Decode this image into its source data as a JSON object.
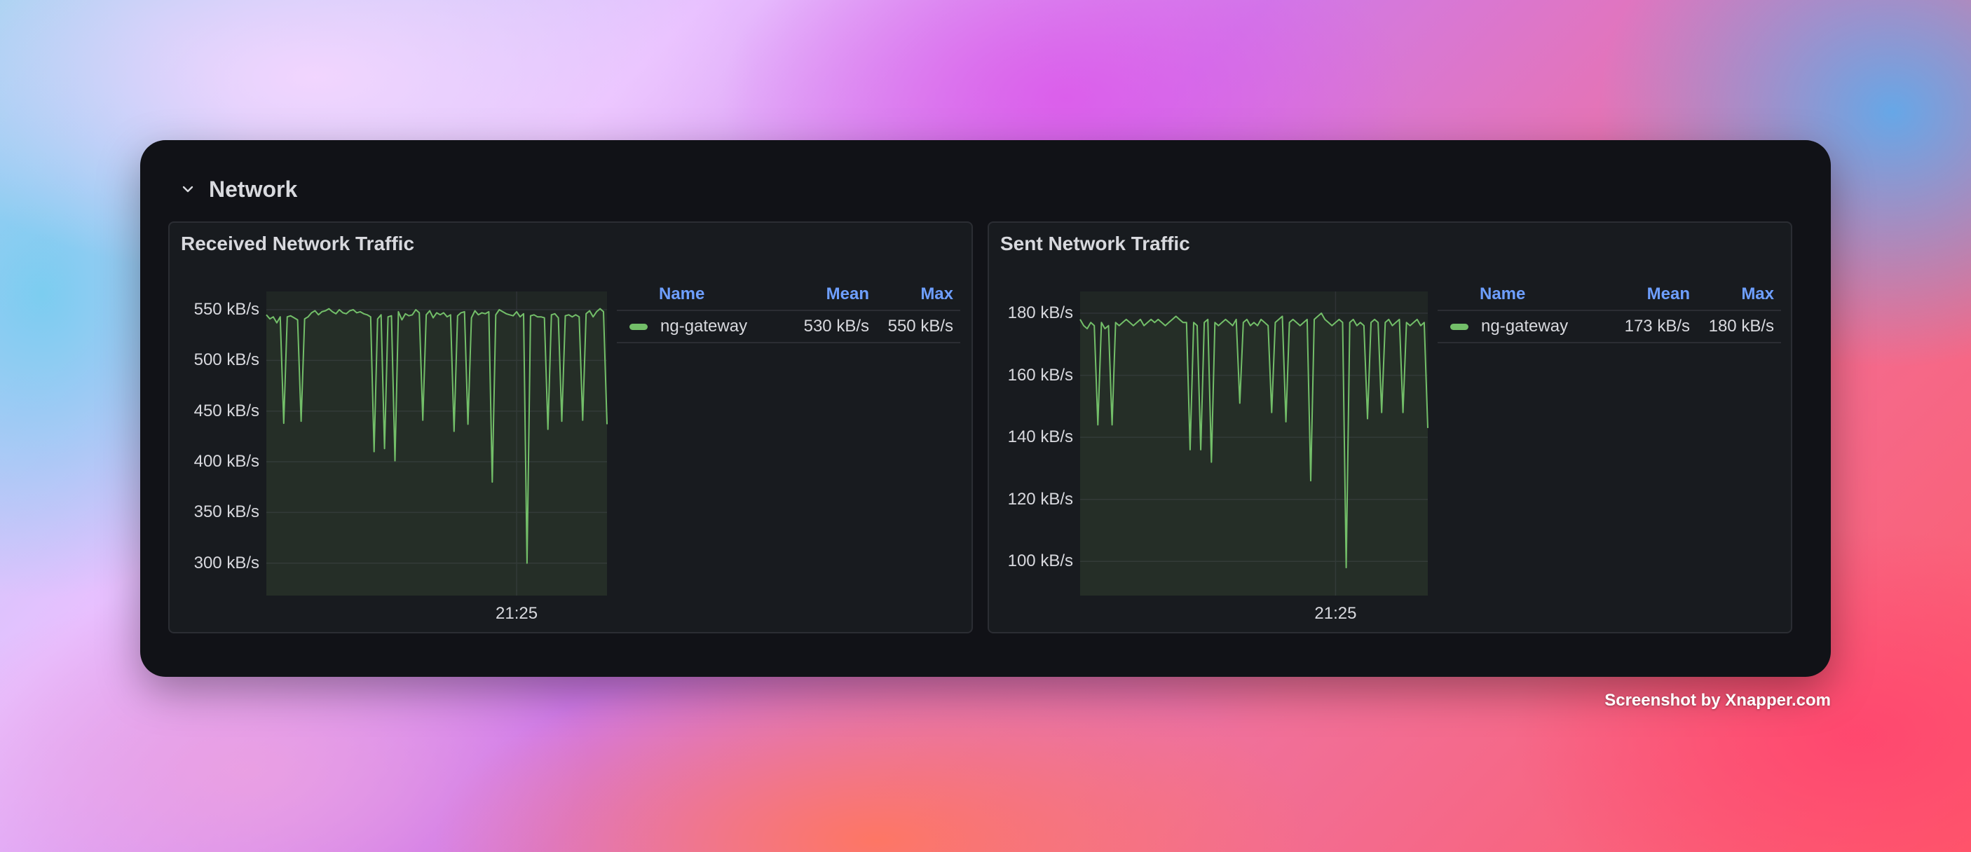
{
  "row": {
    "title": "Network",
    "icon": "chevron-down-icon"
  },
  "panels": [
    {
      "title": "Received Network Traffic",
      "legend": {
        "headers": {
          "name": "Name",
          "mean": "Mean",
          "max": "Max"
        },
        "rows": [
          {
            "name": "ng-gateway",
            "mean": "530 kB/s",
            "max": "550 kB/s",
            "color": "#73bf69"
          }
        ]
      }
    },
    {
      "title": "Sent Network Traffic",
      "legend": {
        "headers": {
          "name": "Name",
          "mean": "Mean",
          "max": "Max"
        },
        "rows": [
          {
            "name": "ng-gateway",
            "mean": "173 kB/s",
            "max": "180 kB/s",
            "color": "#73bf69"
          }
        ]
      }
    }
  ],
  "chart_data": [
    {
      "type": "line",
      "title": "Received Network Traffic",
      "yticks": [
        "550 kB/s",
        "500 kB/s",
        "450 kB/s",
        "400 kB/s",
        "350 kB/s",
        "300 kB/s"
      ],
      "ytick_values": [
        550,
        500,
        450,
        400,
        350,
        300
      ],
      "ylim": [
        268,
        568
      ],
      "xticks": [
        "21:25"
      ],
      "xtick_index": 72,
      "grid": true,
      "series": [
        {
          "name": "ng-gateway",
          "color": "#73bf69",
          "values": [
            545,
            541,
            543,
            537,
            543,
            438,
            543,
            544,
            542,
            540,
            440,
            541,
            543,
            547,
            549,
            545,
            548,
            549,
            551,
            548,
            546,
            550,
            547,
            546,
            549,
            550,
            547,
            548,
            546,
            545,
            543,
            410,
            541,
            545,
            413,
            543,
            544,
            401,
            548,
            540,
            546,
            544,
            545,
            550,
            547,
            441,
            545,
            549,
            542,
            547,
            545,
            547,
            543,
            545,
            430,
            544,
            547,
            548,
            437,
            542,
            549,
            545,
            547,
            546,
            548,
            380,
            545,
            550,
            548,
            546,
            545,
            544,
            548,
            543,
            546,
            300,
            544,
            545,
            543,
            543,
            542,
            432,
            545,
            546,
            542,
            440,
            544,
            545,
            543,
            545,
            543,
            441,
            546,
            549,
            543,
            548,
            551,
            548,
            437
          ]
        }
      ]
    },
    {
      "type": "line",
      "title": "Sent Network Traffic",
      "yticks": [
        "180 kB/s",
        "160 kB/s",
        "140 kB/s",
        "120 kB/s",
        "100 kB/s"
      ],
      "ytick_values": [
        180,
        160,
        140,
        120,
        100
      ],
      "ylim": [
        89,
        187
      ],
      "xticks": [
        "21:25"
      ],
      "xtick_index": 72,
      "grid": true,
      "series": [
        {
          "name": "ng-gateway",
          "color": "#73bf69",
          "values": [
            178,
            176,
            175,
            177,
            176,
            144,
            177,
            175,
            176,
            144,
            177,
            176,
            177,
            178,
            177,
            176,
            177,
            178,
            176,
            177,
            178,
            177,
            178,
            177,
            176,
            177,
            178,
            179,
            178,
            177,
            177,
            136,
            177,
            176,
            136,
            177,
            178,
            132,
            177,
            176,
            177,
            178,
            177,
            176,
            178,
            151,
            177,
            178,
            176,
            177,
            176,
            178,
            177,
            176,
            148,
            177,
            178,
            179,
            145,
            177,
            178,
            177,
            176,
            177,
            178,
            126,
            178,
            179,
            180,
            178,
            177,
            176,
            177,
            178,
            177,
            98,
            177,
            178,
            176,
            177,
            176,
            146,
            177,
            178,
            177,
            148,
            177,
            178,
            176,
            177,
            178,
            148,
            177,
            176,
            177,
            178,
            176,
            177,
            143
          ]
        }
      ]
    }
  ],
  "credit": "Screenshot by Xnapper.com"
}
